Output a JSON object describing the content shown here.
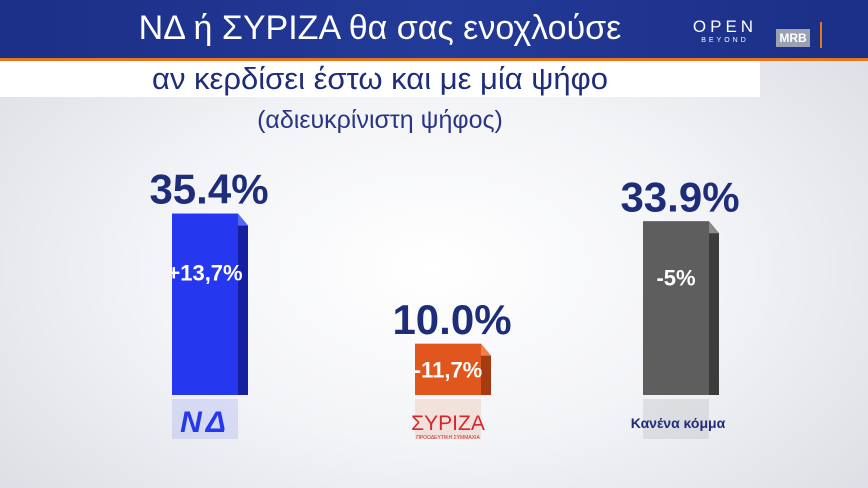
{
  "header": {
    "title": "ΝΔ ή ΣΥΡΙΖΑ θα σας ενοχλούσε",
    "subtitle": "αν κερδίσει έστω και με μία ψήφο",
    "note": "(αδιευκρίνιστη ψήφος)",
    "channel": "OPEN",
    "channel_sub": "BEYOND",
    "pollster": "MRB"
  },
  "colors": {
    "nd": "#2538f0",
    "syriza": "#e0561c",
    "none": "#5e5e5e",
    "text": "#1e2d7a"
  },
  "chart_data": {
    "type": "bar",
    "categories": [
      "ΝΔ",
      "ΣΥΡΙΖΑ",
      "Κανένα κόμμα"
    ],
    "values": [
      35.4,
      10.0,
      33.9
    ],
    "value_labels": [
      "35.4%",
      "10.0%",
      "33.9%"
    ],
    "changes": [
      "+13,7%",
      "-11,7%",
      "-5%"
    ],
    "category_labels": [
      "ΝΔ",
      "ΣΥΡΙΖΑ",
      "Κανένα κόμμα"
    ],
    "party_logo_text": [
      "ΝΔ",
      "ΣΥΡΙΖΑ"
    ],
    "party_logo_subtext": [
      "",
      "ΠΡΟΟΔΕΥΤΙΚΗ ΣΥΜΜΑΧΙΑ"
    ],
    "ylim": [
      0,
      40
    ],
    "grid": false,
    "legend": "none"
  }
}
